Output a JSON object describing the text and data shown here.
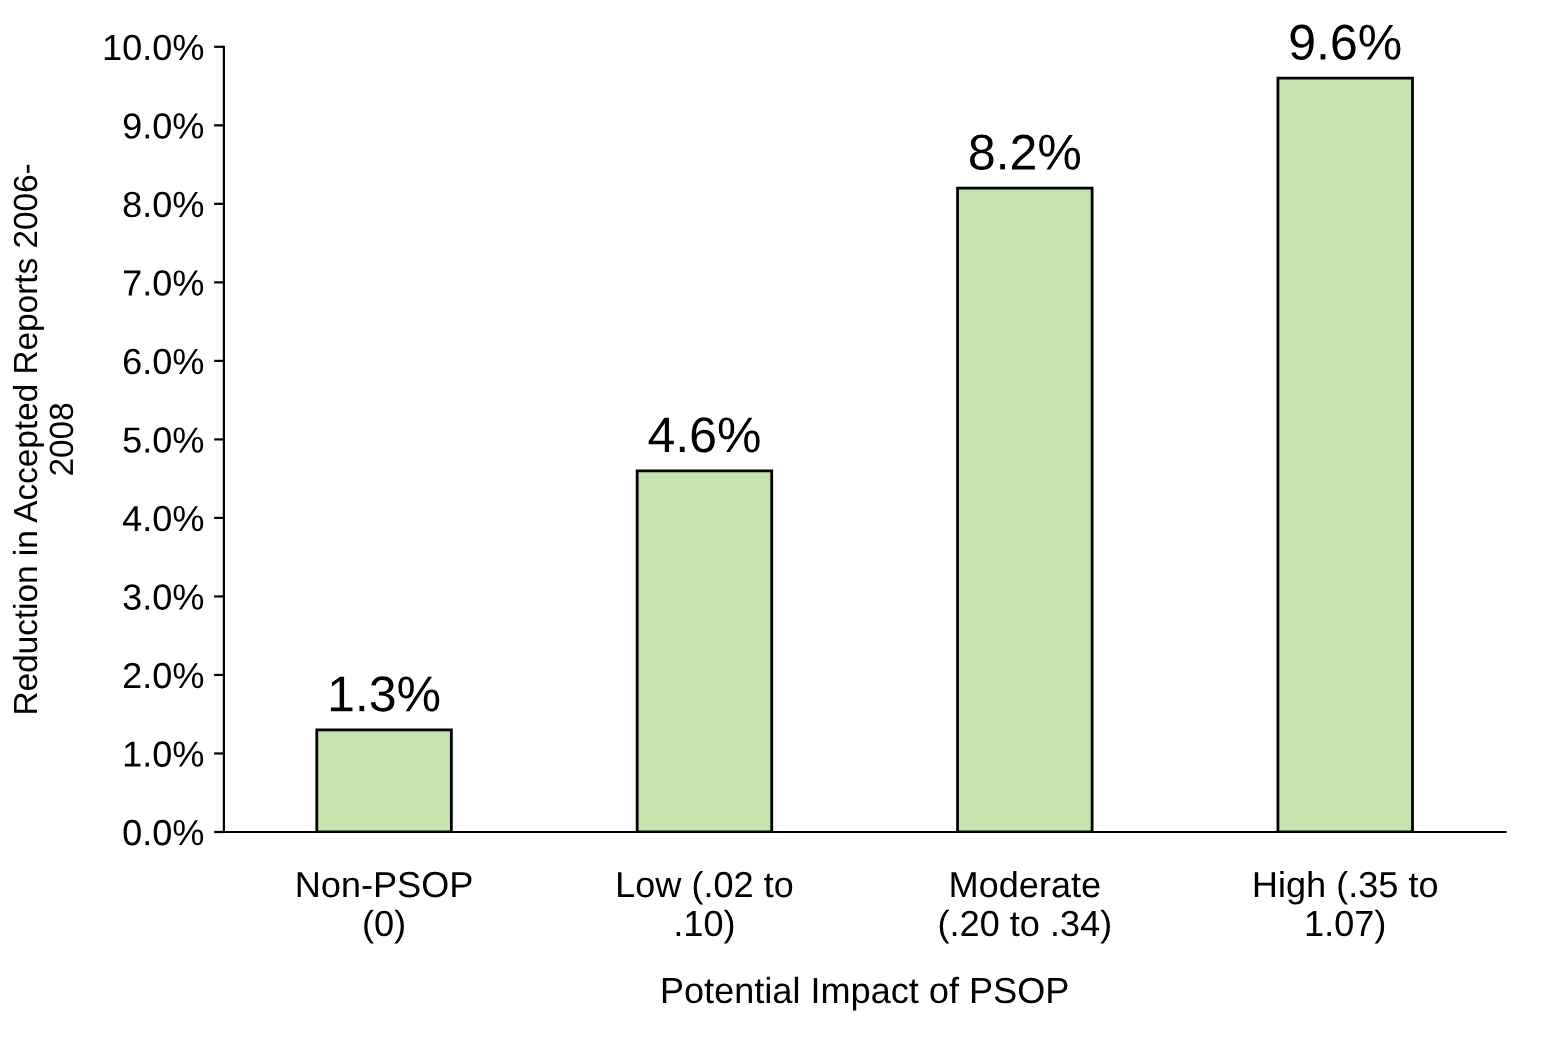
{
  "chart_data": {
    "type": "bar",
    "xlabel": "Potential Impact of PSOP",
    "ylabel": "Reduction in Accepted Reports 2006-\n2008",
    "categories": [
      "Non-PSOP\n(0)",
      "Low (.02 to\n.10)",
      "Moderate\n(.20 to .34)",
      "High (.35 to\n1.07)"
    ],
    "values": [
      1.3,
      4.6,
      8.2,
      9.6
    ],
    "color": "#c4e3ad",
    "value_labels": [
      "1.3%",
      "4.6%",
      "8.2%",
      "9.6%"
    ],
    "ylim": [
      0,
      10
    ],
    "yticks": [
      {
        "value": 0,
        "label": "0.0%"
      },
      {
        "value": 1,
        "label": "1.0%"
      },
      {
        "value": 2,
        "label": "2.0%"
      },
      {
        "value": 3,
        "label": "3.0%"
      },
      {
        "value": 4,
        "label": "4.0%"
      },
      {
        "value": 5,
        "label": "5.0%"
      },
      {
        "value": 6,
        "label": "6.0%"
      },
      {
        "value": 7,
        "label": "7.0%"
      },
      {
        "value": 8,
        "label": "8.0%"
      },
      {
        "value": 9,
        "label": "9.0%"
      },
      {
        "value": 10,
        "label": "10.0%"
      }
    ],
    "grid": false
  }
}
